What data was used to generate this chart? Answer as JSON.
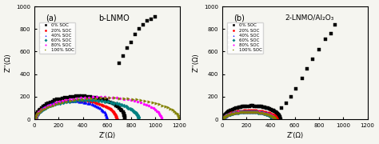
{
  "panel_a_title": "b-LNMO",
  "panel_b_title": "2-LNMO/Al₂O₃",
  "panel_a_label": "(a)",
  "panel_b_label": "(b)",
  "xlabel": "Z’(Ω)",
  "ylabel": "Z’’(Ω)",
  "xlim_a": [
    0,
    1200
  ],
  "ylim_a": [
    0,
    1000
  ],
  "xlim_b": [
    0,
    1200
  ],
  "ylim_b": [
    0,
    1000
  ],
  "xticks_a": [
    0,
    200,
    400,
    600,
    800,
    1000,
    1200
  ],
  "yticks_a": [
    0,
    200,
    400,
    600,
    800,
    1000
  ],
  "xticks_b": [
    0,
    200,
    400,
    600,
    800,
    1000,
    1200
  ],
  "yticks_b": [
    0,
    200,
    400,
    600,
    800,
    1000
  ],
  "legend_labels": [
    "0% SOC",
    "20% SOC",
    "40% SOC",
    "60% SOC",
    "80% SOC",
    "100% SOC"
  ],
  "colors": [
    "black",
    "red",
    "blue",
    "teal",
    "magenta",
    "#808000"
  ],
  "markers": [
    "s",
    "o",
    "^",
    "D",
    "p",
    ">"
  ],
  "background_color": "#f5f5f0"
}
